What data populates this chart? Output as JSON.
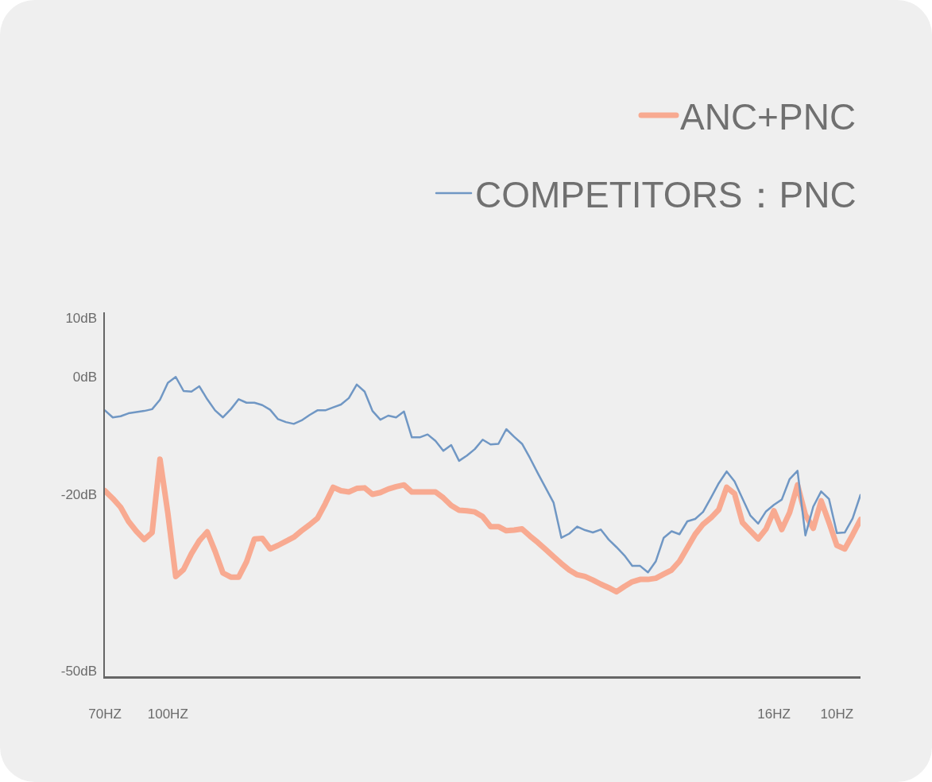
{
  "chart_data": {
    "type": "line",
    "categories": [
      "70HZ",
      null,
      null,
      null,
      null,
      null,
      null,
      null,
      "100HZ",
      null,
      null,
      null,
      null,
      null,
      null,
      null,
      null,
      null,
      null,
      null,
      null,
      null,
      null,
      null,
      null,
      null,
      null,
      null,
      null,
      null,
      null,
      null,
      null,
      null,
      null,
      null,
      null,
      null,
      null,
      null,
      null,
      null,
      null,
      null,
      null,
      null,
      null,
      null,
      null,
      null,
      null,
      null,
      null,
      null,
      null,
      null,
      null,
      null,
      null,
      null,
      null,
      null,
      null,
      null,
      null,
      null,
      null,
      null,
      null,
      null,
      null,
      null,
      null,
      null,
      null,
      null,
      null,
      null,
      null,
      null,
      null,
      null,
      null,
      null,
      null,
      "16HZ",
      null,
      null,
      null,
      null,
      null,
      null,
      null,
      "10HZ",
      null,
      null,
      null
    ],
    "series": [
      {
        "name": "ANC+PNC",
        "color": "#f8aa91",
        "values": [
          -19.4,
          -20.7,
          -22.2,
          -24.6,
          -26.3,
          -27.7,
          -26.5,
          -14.0,
          -23.2,
          -34.0,
          -32.8,
          -30.1,
          -27.9,
          -26.4,
          -29.7,
          -33.4,
          -34.1,
          -34.1,
          -31.5,
          -27.6,
          -27.5,
          -29.3,
          -28.7,
          -28.0,
          -27.3,
          -26.2,
          -25.2,
          -24.1,
          -21.6,
          -18.8,
          -19.4,
          -19.6,
          -19.0,
          -18.9,
          -20.0,
          -19.7,
          -19.1,
          -18.7,
          -18.4,
          -19.6,
          -19.6,
          -19.6,
          -19.6,
          -20.6,
          -21.9,
          -22.7,
          -22.8,
          -23.0,
          -23.8,
          -25.5,
          -25.5,
          -26.2,
          -26.1,
          -25.9,
          -27.1,
          -28.2,
          -29.4,
          -30.6,
          -31.8,
          -32.9,
          -33.7,
          -34.0,
          -34.6,
          -35.3,
          -35.9,
          -36.6,
          -35.7,
          -34.9,
          -34.5,
          -34.5,
          -34.3,
          -33.6,
          -32.9,
          -31.4,
          -29.1,
          -26.8,
          -25.1,
          -24.0,
          -22.6,
          -18.8,
          -19.9,
          -24.8,
          -26.2,
          -27.6,
          -25.9,
          -22.8,
          -26.0,
          -23.1,
          -18.4,
          -23.5,
          -25.8,
          -21.1,
          -24.8,
          -28.7,
          -29.3,
          -26.9,
          -24.3
        ]
      },
      {
        "name": "COMPETITORS：PNC",
        "color": "#7097c4",
        "values": [
          -5.7,
          -6.9,
          -6.7,
          -6.2,
          -6.0,
          -5.8,
          -5.5,
          -3.9,
          -1.0,
          0.0,
          -2.4,
          -2.5,
          -1.6,
          -3.8,
          -5.7,
          -6.9,
          -5.5,
          -3.8,
          -4.4,
          -4.4,
          -4.8,
          -5.6,
          -7.2,
          -7.7,
          -8.0,
          -7.4,
          -6.5,
          -5.7,
          -5.7,
          -5.2,
          -4.7,
          -3.6,
          -1.3,
          -2.5,
          -5.8,
          -7.3,
          -6.6,
          -6.9,
          -5.9,
          -10.3,
          -10.3,
          -9.8,
          -10.9,
          -12.6,
          -11.6,
          -14.3,
          -13.4,
          -12.3,
          -10.7,
          -11.5,
          -11.4,
          -8.9,
          -10.2,
          -11.4,
          -13.8,
          -16.4,
          -18.9,
          -21.4,
          -27.4,
          -26.7,
          -25.5,
          -26.1,
          -26.5,
          -26.0,
          -27.7,
          -29.0,
          -30.4,
          -32.2,
          -32.2,
          -33.3,
          -31.4,
          -27.4,
          -26.3,
          -26.8,
          -24.6,
          -24.2,
          -23.0,
          -20.6,
          -18.1,
          -16.1,
          -17.8,
          -20.7,
          -23.6,
          -25.0,
          -22.9,
          -21.8,
          -20.9,
          -17.4,
          -16.0,
          -27.0,
          -22.1,
          -19.5,
          -20.8,
          -26.6,
          -26.5,
          -24.1,
          -20.1
        ]
      }
    ],
    "ylim": [
      -51,
      11
    ],
    "yticks": [
      {
        "value": 10,
        "label": "10dB"
      },
      {
        "value": 0,
        "label": "0dB"
      },
      {
        "value": -20,
        "label": "-20dB"
      },
      {
        "value": -50,
        "label": "-50dB"
      }
    ],
    "legend": "top right"
  }
}
